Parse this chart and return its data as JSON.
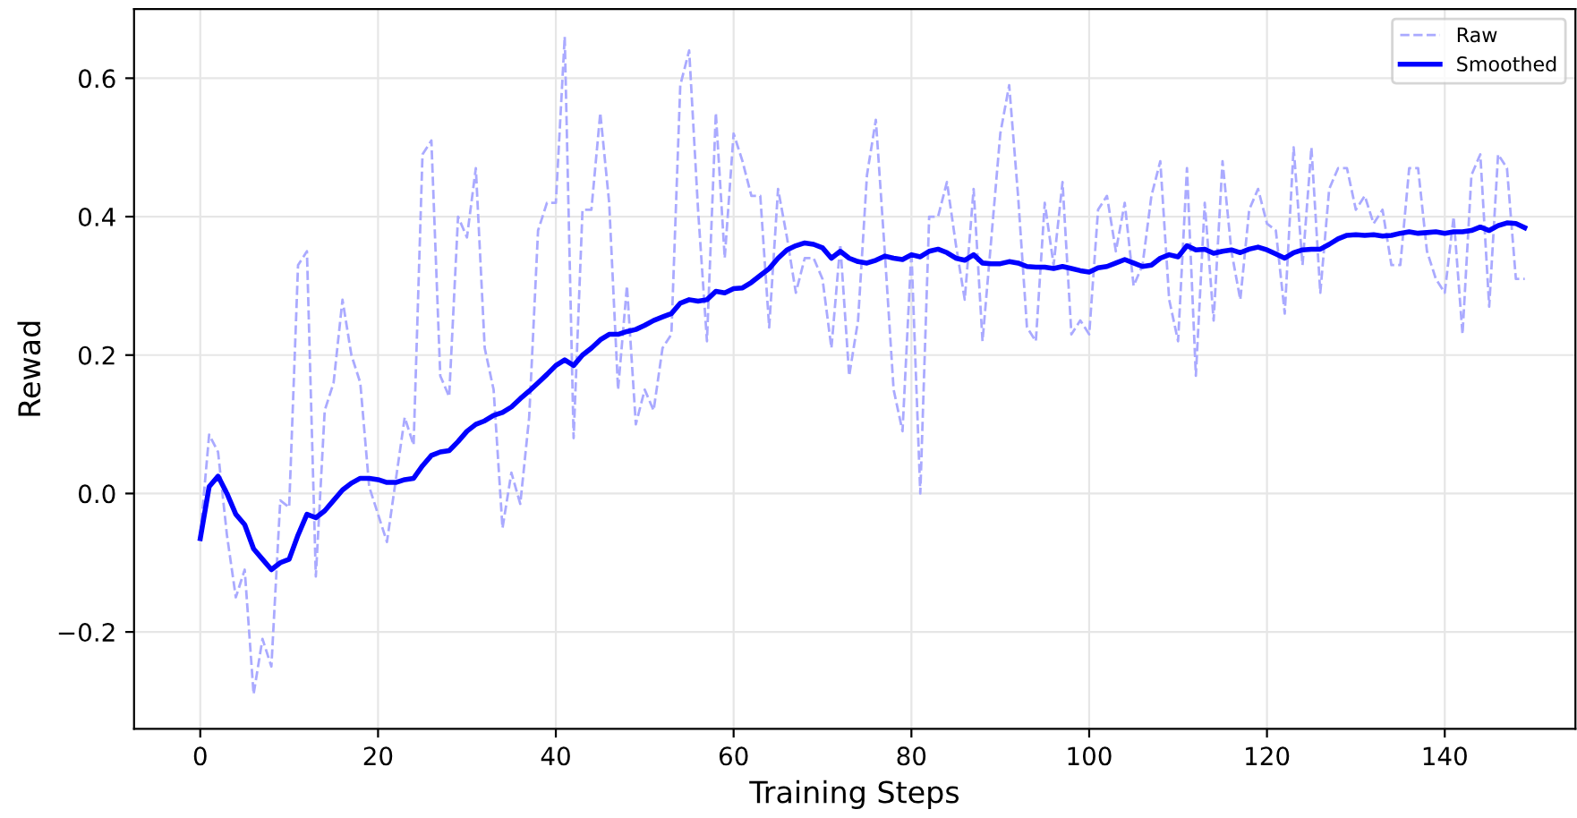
{
  "chart_data": {
    "type": "line",
    "xlabel": "Training Steps",
    "ylabel": "Rewad",
    "x": [
      0,
      1,
      2,
      3,
      4,
      5,
      6,
      7,
      8,
      9,
      10,
      11,
      12,
      13,
      14,
      15,
      16,
      17,
      18,
      19,
      20,
      21,
      22,
      23,
      24,
      25,
      26,
      27,
      28,
      29,
      30,
      31,
      32,
      33,
      34,
      35,
      36,
      37,
      38,
      39,
      40,
      41,
      42,
      43,
      44,
      45,
      46,
      47,
      48,
      49,
      50,
      51,
      52,
      53,
      54,
      55,
      56,
      57,
      58,
      59,
      60,
      61,
      62,
      63,
      64,
      65,
      66,
      67,
      68,
      69,
      70,
      71,
      72,
      73,
      74,
      75,
      76,
      77,
      78,
      79,
      80,
      81,
      82,
      83,
      84,
      85,
      86,
      87,
      88,
      89,
      90,
      91,
      92,
      93,
      94,
      95,
      96,
      97,
      98,
      99,
      100,
      101,
      102,
      103,
      104,
      105,
      106,
      107,
      108,
      109,
      110,
      111,
      112,
      113,
      114,
      115,
      116,
      117,
      118,
      119,
      120,
      121,
      122,
      123,
      124,
      125,
      126,
      127,
      128,
      129,
      130,
      131,
      132,
      133,
      134,
      135,
      136,
      137,
      138,
      139,
      140,
      141,
      142,
      143,
      144,
      145,
      146,
      147,
      148,
      149
    ],
    "series": [
      {
        "name": "Raw",
        "color": "#aaaaff",
        "line_style": "dashed",
        "values": [
          -0.06,
          0.085,
          0.06,
          -0.06,
          -0.15,
          -0.11,
          -0.29,
          -0.21,
          -0.25,
          -0.01,
          -0.02,
          0.33,
          0.35,
          -0.12,
          0.12,
          0.16,
          0.28,
          0.2,
          0.16,
          0.01,
          -0.03,
          -0.07,
          0.02,
          0.11,
          0.07,
          0.49,
          0.51,
          0.17,
          0.14,
          0.4,
          0.37,
          0.47,
          0.21,
          0.15,
          -0.05,
          0.03,
          -0.015,
          0.11,
          0.38,
          0.42,
          0.42,
          0.66,
          0.08,
          0.41,
          0.41,
          0.55,
          0.42,
          0.15,
          0.3,
          0.1,
          0.15,
          0.12,
          0.21,
          0.23,
          0.59,
          0.64,
          0.41,
          0.22,
          0.55,
          0.34,
          0.52,
          0.48,
          0.43,
          0.43,
          0.24,
          0.44,
          0.37,
          0.29,
          0.34,
          0.34,
          0.31,
          0.21,
          0.36,
          0.17,
          0.25,
          0.46,
          0.54,
          0.35,
          0.15,
          0.09,
          0.35,
          0.0,
          0.4,
          0.4,
          0.45,
          0.36,
          0.28,
          0.44,
          0.22,
          0.37,
          0.52,
          0.59,
          0.43,
          0.24,
          0.22,
          0.42,
          0.33,
          0.45,
          0.23,
          0.25,
          0.23,
          0.41,
          0.43,
          0.35,
          0.42,
          0.3,
          0.33,
          0.43,
          0.48,
          0.28,
          0.22,
          0.47,
          0.17,
          0.42,
          0.25,
          0.48,
          0.35,
          0.28,
          0.41,
          0.44,
          0.39,
          0.38,
          0.26,
          0.5,
          0.33,
          0.5,
          0.29,
          0.44,
          0.47,
          0.47,
          0.41,
          0.43,
          0.39,
          0.41,
          0.33,
          0.33,
          0.47,
          0.47,
          0.35,
          0.31,
          0.29,
          0.4,
          0.23,
          0.46,
          0.49,
          0.27,
          0.49,
          0.47,
          0.31,
          0.31
        ]
      },
      {
        "name": "Smoothed",
        "color": "#0000ff",
        "line_style": "solid",
        "values": [
          -0.065,
          0.01,
          0.025,
          0.0,
          -0.03,
          -0.045,
          -0.08,
          -0.095,
          -0.11,
          -0.1,
          -0.095,
          -0.06,
          -0.03,
          -0.035,
          -0.025,
          -0.01,
          0.005,
          0.015,
          0.022,
          0.022,
          0.02,
          0.016,
          0.016,
          0.02,
          0.022,
          0.04,
          0.055,
          0.06,
          0.062,
          0.075,
          0.09,
          0.1,
          0.105,
          0.113,
          0.117,
          0.125,
          0.137,
          0.148,
          0.16,
          0.172,
          0.185,
          0.193,
          0.185,
          0.2,
          0.21,
          0.222,
          0.23,
          0.23,
          0.234,
          0.237,
          0.243,
          0.25,
          0.255,
          0.26,
          0.275,
          0.28,
          0.278,
          0.28,
          0.292,
          0.29,
          0.296,
          0.297,
          0.305,
          0.315,
          0.325,
          0.34,
          0.352,
          0.358,
          0.362,
          0.36,
          0.355,
          0.34,
          0.35,
          0.34,
          0.335,
          0.333,
          0.337,
          0.343,
          0.34,
          0.338,
          0.345,
          0.342,
          0.35,
          0.353,
          0.348,
          0.34,
          0.337,
          0.345,
          0.333,
          0.332,
          0.332,
          0.335,
          0.333,
          0.328,
          0.327,
          0.327,
          0.325,
          0.328,
          0.325,
          0.322,
          0.32,
          0.326,
          0.328,
          0.333,
          0.338,
          0.333,
          0.328,
          0.33,
          0.34,
          0.345,
          0.342,
          0.358,
          0.352,
          0.353,
          0.347,
          0.35,
          0.352,
          0.348,
          0.353,
          0.356,
          0.352,
          0.346,
          0.34,
          0.348,
          0.352,
          0.353,
          0.353,
          0.36,
          0.368,
          0.373,
          0.374,
          0.373,
          0.374,
          0.372,
          0.373,
          0.376,
          0.378,
          0.376,
          0.377,
          0.378,
          0.376,
          0.378,
          0.378,
          0.38,
          0.385,
          0.38,
          0.387,
          0.391,
          0.39,
          0.384
        ]
      }
    ],
    "xlim": [
      -7.45,
      154.7
    ],
    "ylim": [
      -0.34,
      0.7
    ],
    "xticks": [
      0,
      20,
      40,
      60,
      80,
      100,
      120,
      140
    ],
    "yticks": [
      {
        "value": -0.2,
        "label": "−0.2"
      },
      {
        "value": 0.0,
        "label": "0.0"
      },
      {
        "value": 0.2,
        "label": "0.2"
      },
      {
        "value": 0.4,
        "label": "0.4"
      },
      {
        "value": 0.6,
        "label": "0.6"
      }
    ],
    "grid": true,
    "legend": "top right",
    "marker": "none"
  }
}
